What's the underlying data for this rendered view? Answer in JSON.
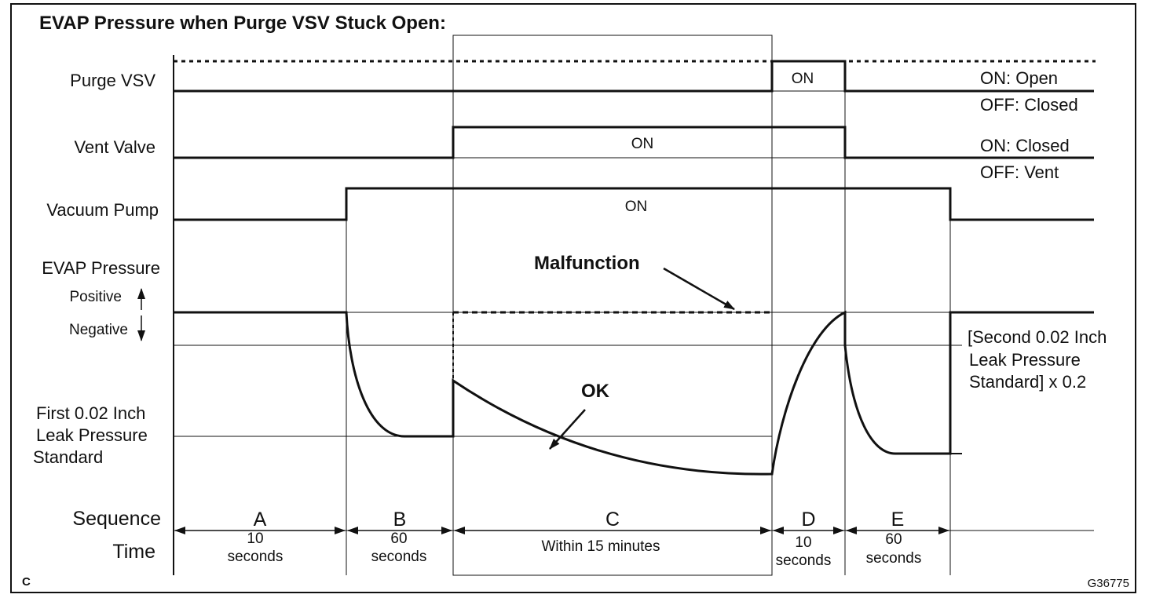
{
  "title": "EVAP Pressure when Purge VSV Stuck Open:",
  "signals": [
    {
      "label": "Purge VSV",
      "state": "ON",
      "legend": [
        "ON: Open",
        "OFF: Closed"
      ]
    },
    {
      "label": "Vent Valve",
      "state": "ON",
      "legend": [
        "ON: Closed",
        "OFF: Vent"
      ]
    },
    {
      "label": "Vacuum Pump",
      "state": "ON"
    }
  ],
  "pressure": {
    "label": "EVAP Pressure",
    "positive": "Positive",
    "negative": "Negative",
    "malfunction": "Malfunction",
    "ok": "OK",
    "first_standard": [
      "First 0.02 Inch",
      "Leak Pressure",
      "Standard"
    ],
    "second_standard": [
      "[Second 0.02 Inch",
      "Leak Pressure",
      "Standard] x 0.2"
    ]
  },
  "sequence_label": "Sequence",
  "time_label": "Time",
  "phases": [
    {
      "name": "A",
      "time": [
        "10",
        "seconds"
      ]
    },
    {
      "name": "B",
      "time": [
        "60",
        "seconds"
      ]
    },
    {
      "name": "C",
      "time": [
        "Within 15 minutes"
      ]
    },
    {
      "name": "D",
      "time": [
        "10",
        "seconds"
      ]
    },
    {
      "name": "E",
      "time": [
        "60",
        "seconds"
      ]
    }
  ],
  "corner": "C",
  "figure_id": "G36775"
}
